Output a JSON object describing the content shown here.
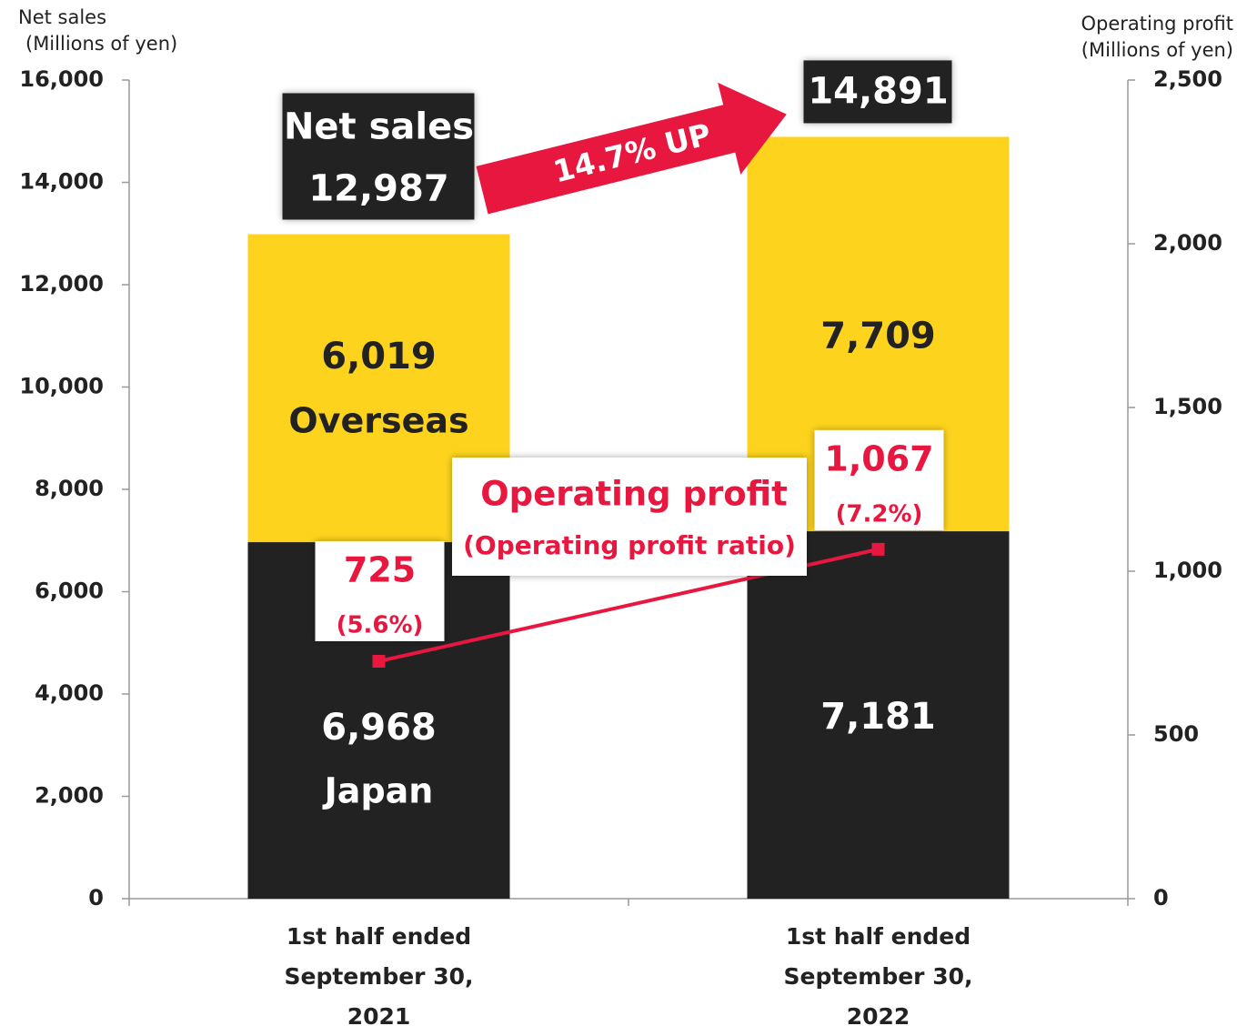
{
  "chart_data": {
    "type": "stacked-bar-line",
    "ylabel": [
      "Net sales",
      "(Millions of yen)"
    ],
    "y2label": [
      "Operating profit",
      "(Millions of yen)"
    ],
    "categories": [
      "1st half ended September 30, 2021",
      "1st half ended September 30, 2022"
    ],
    "series": [
      {
        "name": "Japan",
        "color": "#222222",
        "values": [
          6968,
          7181
        ],
        "value_labels": [
          "6,968",
          "7,181"
        ]
      },
      {
        "name": "Overseas",
        "color": "#fdd31d",
        "values": [
          6019,
          7709
        ],
        "value_labels": [
          "6,019",
          "7,709"
        ]
      }
    ],
    "totals": {
      "name": "Net sales",
      "values": [
        12987,
        14891
      ],
      "value_labels": [
        "12,987",
        "14,891"
      ]
    },
    "line": {
      "name": "Operating profit",
      "subtitle": "(Operating profit ratio)",
      "axis": "y2",
      "color": "#e8173f",
      "values": [
        725,
        1067
      ],
      "value_labels": [
        "725",
        "1,067"
      ],
      "ratio_labels": [
        "(5.6%)",
        "(7.2%)"
      ]
    },
    "annotation": "14.7% UP",
    "ylim": [
      0,
      16000
    ],
    "yticks": [
      {
        "value": 0,
        "label": "0"
      },
      {
        "value": 2000,
        "label": "2,000"
      },
      {
        "value": 4000,
        "label": "4,000"
      },
      {
        "value": 6000,
        "label": "6,000"
      },
      {
        "value": 8000,
        "label": "8,000"
      },
      {
        "value": 10000,
        "label": "10,000"
      },
      {
        "value": 12000,
        "label": "12,000"
      },
      {
        "value": 14000,
        "label": "14,000"
      },
      {
        "value": 16000,
        "label": "16,000"
      }
    ],
    "y2lim": [
      0,
      2500
    ],
    "y2ticks": [
      {
        "value": 0,
        "label": "0"
      },
      {
        "value": 500,
        "label": "500"
      },
      {
        "value": 1000,
        "label": "1,000"
      },
      {
        "value": 1500,
        "label": "1,500"
      },
      {
        "value": 2000,
        "label": "2,000"
      },
      {
        "value": 2500,
        "label": "2,500"
      }
    ]
  }
}
